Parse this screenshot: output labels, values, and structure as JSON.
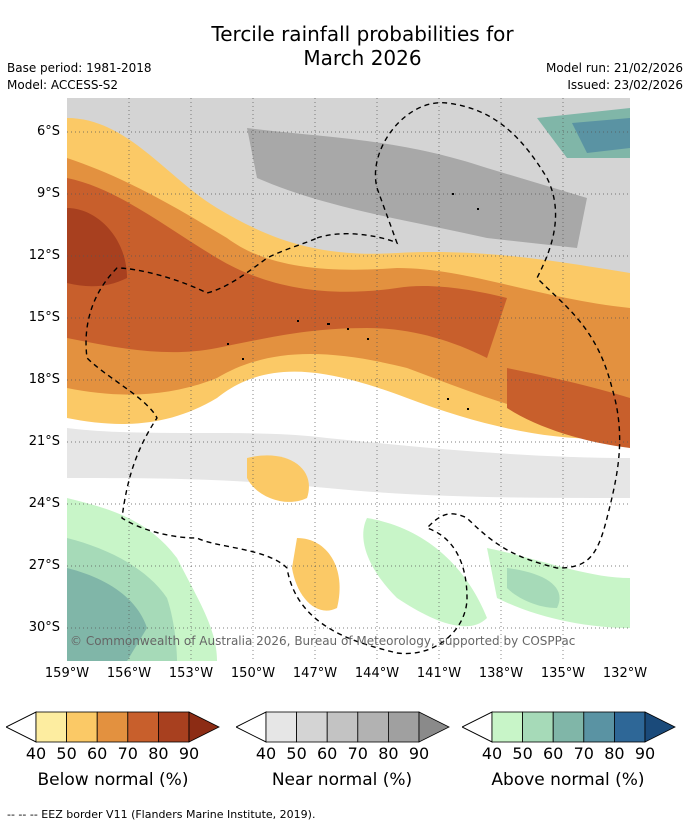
{
  "title_line1": "Tercile rainfall probabilities for",
  "title_line2": "March 2026",
  "base_period": "Base period: 1981-2018",
  "model": "Model: ACCESS-S2",
  "model_run": "Model run: 21/02/2026",
  "issued": "Issued: 23/02/2026",
  "copyright": "© Commonwealth of Australia 2026, Bureau of Meteorology, supported by COSPPac",
  "lat_labels": [
    "6°S",
    "9°S",
    "12°S",
    "15°S",
    "18°S",
    "21°S",
    "24°S",
    "27°S",
    "30°S"
  ],
  "lon_labels": [
    "159°W",
    "156°W",
    "153°W",
    "150°W",
    "147°W",
    "144°W",
    "141°W",
    "138°W",
    "135°W",
    "132°W"
  ],
  "colorbars": [
    {
      "title": "Below normal (%)",
      "ticks": [
        "40",
        "50",
        "60",
        "70",
        "80",
        "90"
      ],
      "colors": [
        "#fdeda0",
        "#fbc966",
        "#e3913f",
        "#c85f2c",
        "#a8401f",
        "#8c2c14"
      ]
    },
    {
      "title": "Near normal (%)",
      "ticks": [
        "40",
        "50",
        "60",
        "70",
        "80",
        "90"
      ],
      "colors": [
        "#e6e6e6",
        "#d4d4d4",
        "#c3c3c3",
        "#b2b2b2",
        "#a0a0a0",
        "#8a8a8a"
      ]
    },
    {
      "title": "Above normal (%)",
      "ticks": [
        "40",
        "50",
        "60",
        "70",
        "80",
        "90"
      ],
      "colors": [
        "#c8f5c8",
        "#a6dab8",
        "#80b6a8",
        "#5a93a3",
        "#2e6797",
        "#1a4a7a"
      ]
    }
  ],
  "footer": "--  --  -- EEZ border V11 (Flanders Marine Institute, 2019)."
}
